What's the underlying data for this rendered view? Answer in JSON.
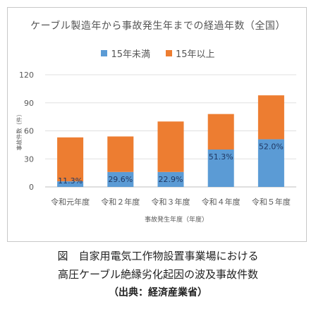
{
  "chart_data": {
    "type": "bar",
    "stacked": true,
    "title": "ケーブル製造年から事故発生年までの経過年数（全国）",
    "xlabel": "事故発生年度（年度）",
    "ylabel": "事故件数（件）",
    "ylim": [
      0,
      120
    ],
    "yticks": [
      0,
      30,
      60,
      90,
      120
    ],
    "grid": true,
    "legend_position": "top",
    "categories": [
      "令和元年度",
      "令和２年度",
      "令和３年度",
      "令和４年度",
      "令和５年度"
    ],
    "series": [
      {
        "name": "15年未満",
        "color": "#5b9bd5",
        "values": [
          6,
          16,
          16,
          40,
          51
        ]
      },
      {
        "name": "15年以上",
        "color": "#ed7d31",
        "values": [
          47,
          38,
          54,
          38,
          47
        ]
      }
    ],
    "data_labels": [
      "11.3%",
      "29.6%",
      "22.9%",
      "51.3%",
      "52.0%"
    ]
  },
  "caption": {
    "line1": "図　自家用電気工作物設置事業場における",
    "line2": "高圧ケーブル絶縁劣化起因の波及事故件数",
    "line3": "（出典：経済産業省）"
  }
}
